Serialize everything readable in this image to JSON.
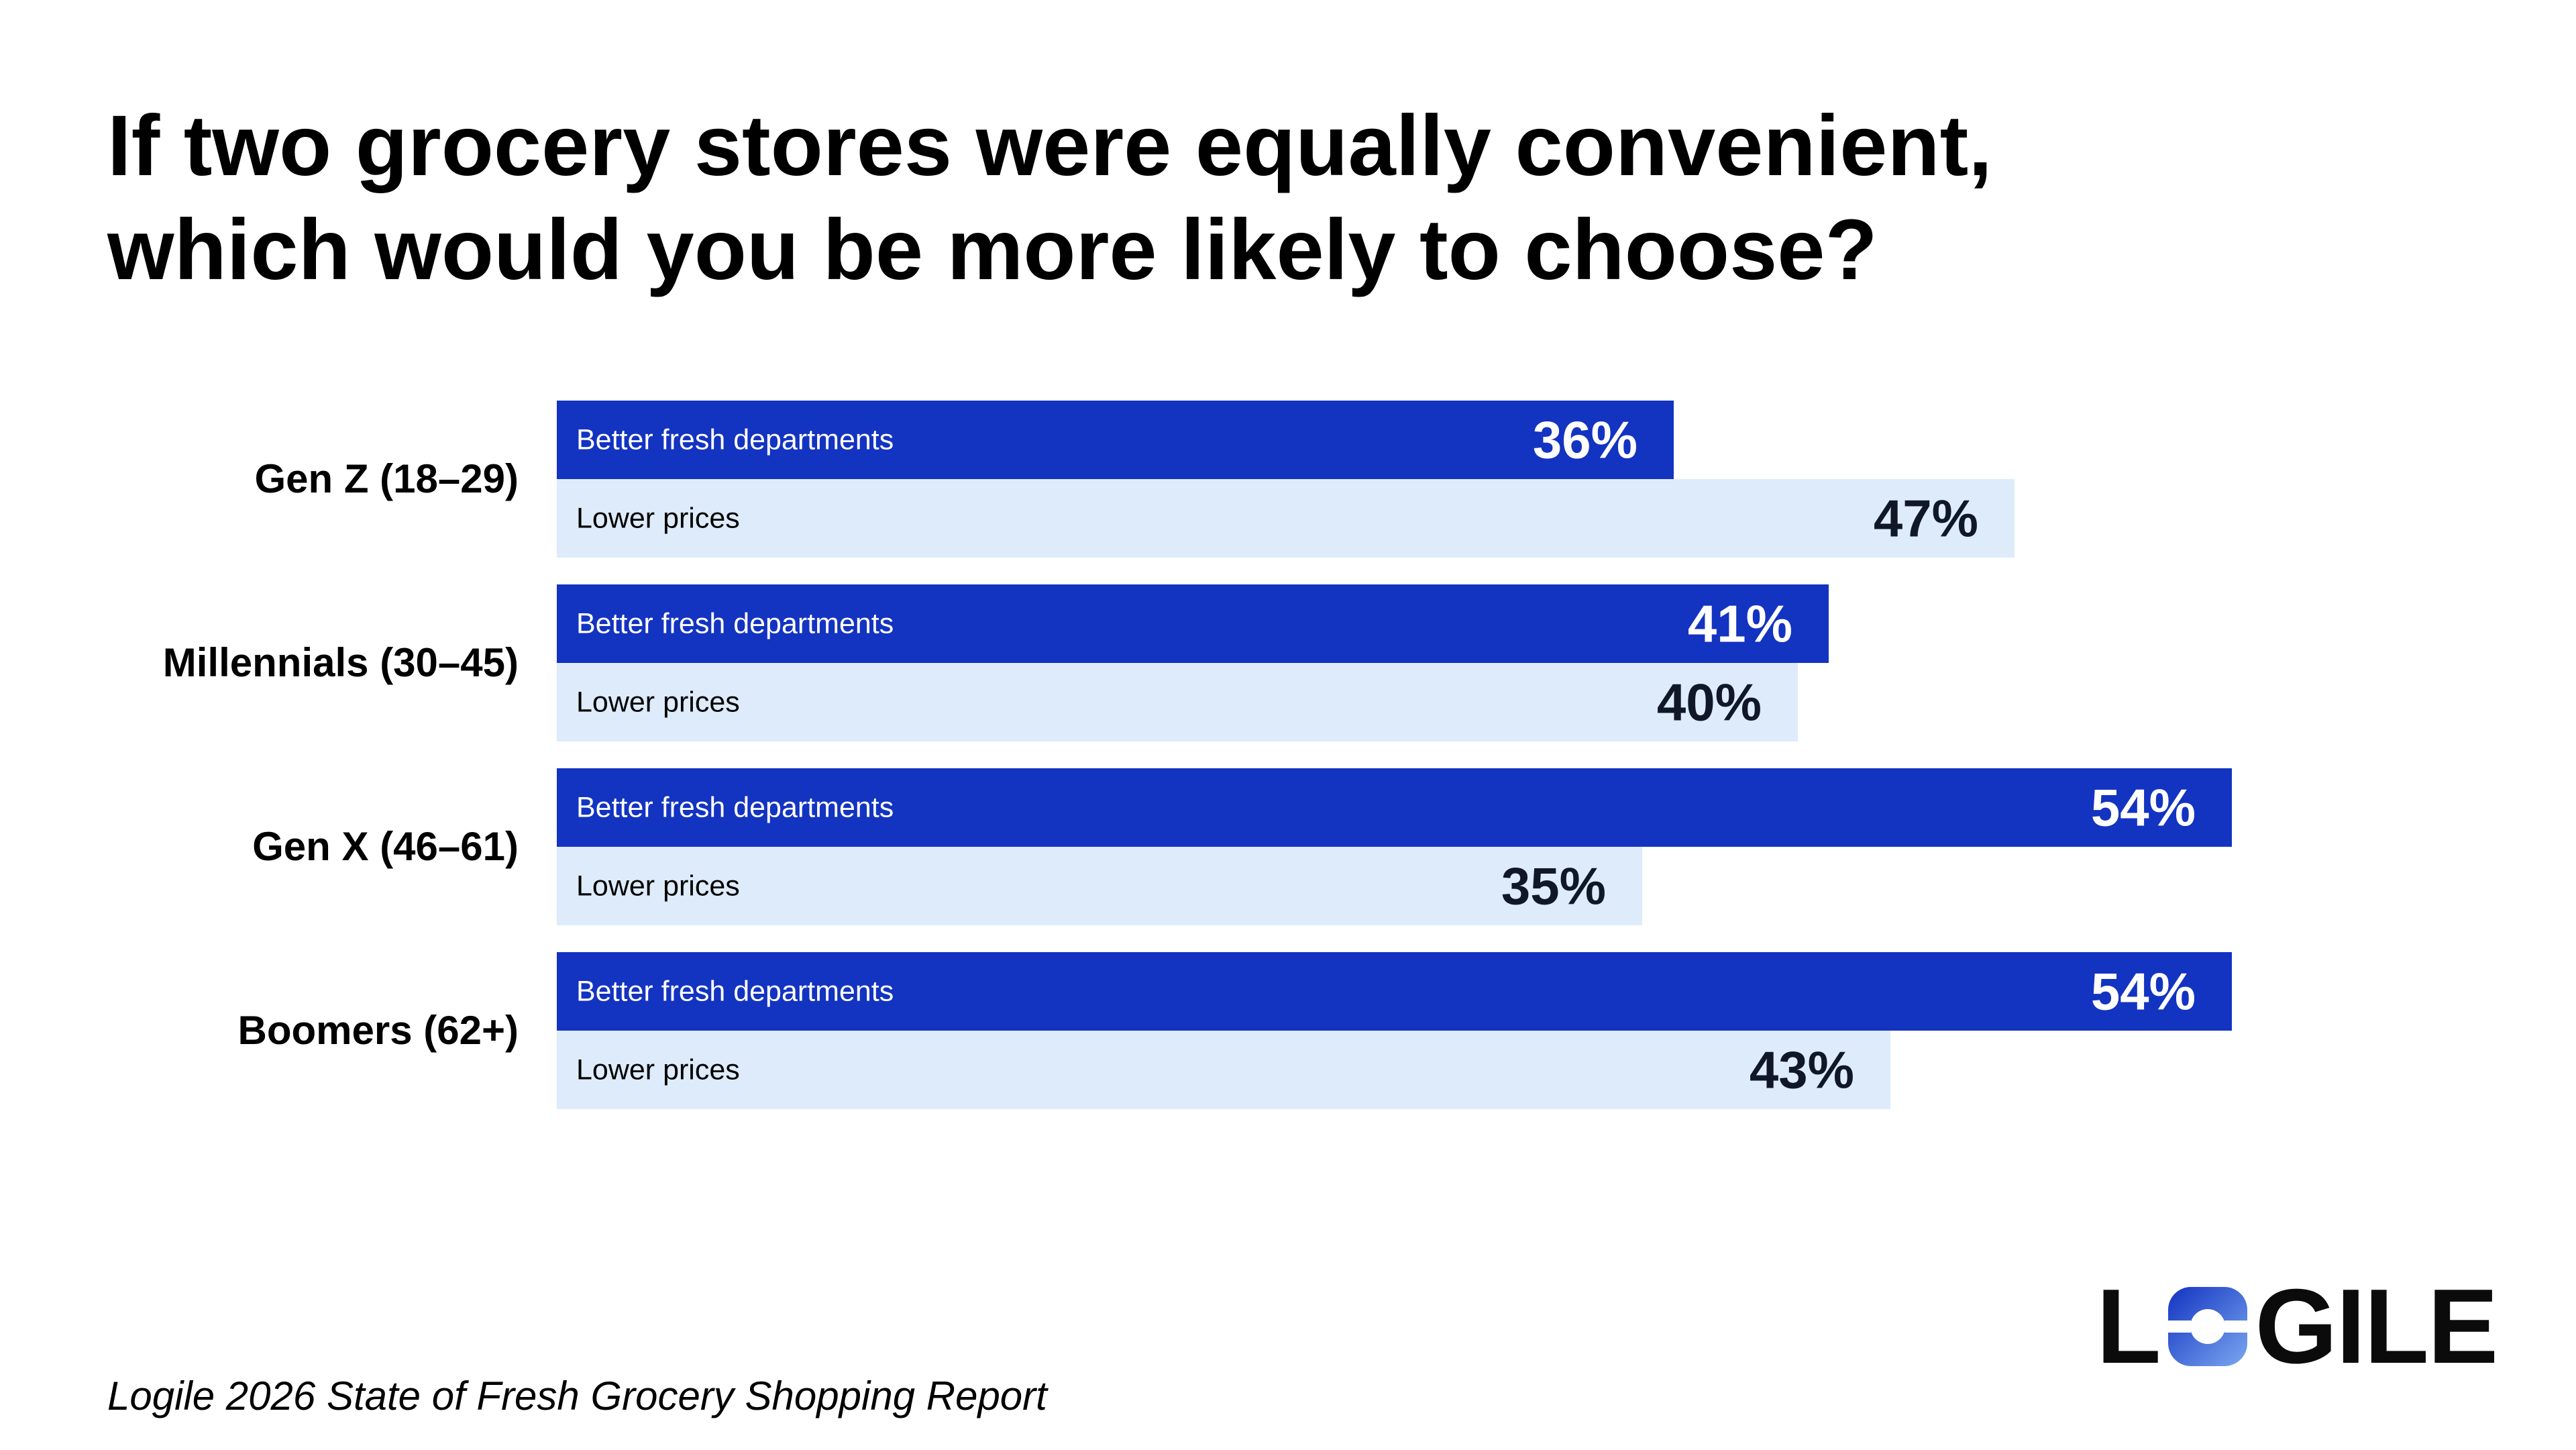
{
  "title_line1": "If two grocery stores were equally convenient,",
  "title_line2": "which would you be more likely to choose?",
  "source": "Logile 2026 State of Fresh Grocery Shopping Report",
  "logo": {
    "text_left": "L",
    "text_right": "GILE",
    "full": "LOGILE"
  },
  "colors": {
    "fresh": "#1333c1",
    "price": "#deebfa",
    "title": "#000000"
  },
  "chart_data": {
    "type": "bar",
    "orientation": "horizontal",
    "title": "If two grocery stores were equally convenient, which would you be more likely to choose?",
    "categories": [
      "Gen Z (18–29)",
      "Millennials (30–45)",
      "Gen X (46–61)",
      "Boomers (62+)"
    ],
    "series": [
      {
        "name": "Better fresh departments",
        "values": [
          36,
          41,
          54,
          54
        ],
        "labels": [
          "36%",
          "41%",
          "54%",
          "54%"
        ],
        "color": "#1333c1"
      },
      {
        "name": "Lower prices",
        "values": [
          47,
          40,
          35,
          43
        ],
        "labels": [
          "47%",
          "40%",
          "35%",
          "43%"
        ],
        "color": "#deebfa"
      }
    ],
    "value_unit": "%",
    "xlim": [
      0,
      54
    ],
    "grid": false,
    "legend": "none"
  }
}
